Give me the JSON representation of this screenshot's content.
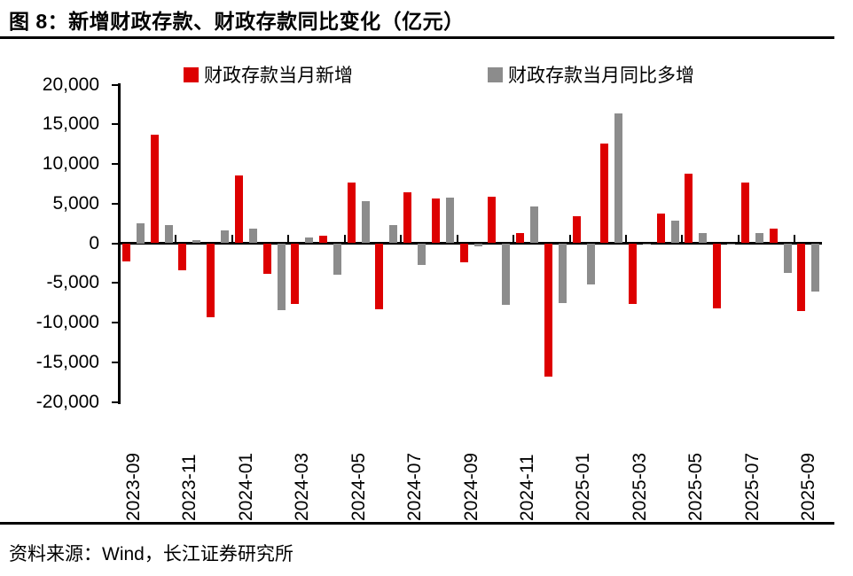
{
  "page": {
    "title": "图 8：新增财政存款、财政存款同比变化（亿元）",
    "source_note": "资料来源：Wind，长江证券研究所"
  },
  "legend": {
    "items": [
      {
        "label": "财政存款当月新增",
        "color": "#dd0000"
      },
      {
        "label": "财政存款当月同比多增",
        "color": "#8c8c8c"
      }
    ]
  },
  "y_axis": {
    "tick_labels": [
      "20,000",
      "15,000",
      "10,000",
      "5,000",
      "0",
      "-5,000",
      "-10,000",
      "-15,000",
      "-20,000"
    ]
  },
  "chart_data": {
    "type": "bar",
    "title": "图 8：新增财政存款、财政存款同比变化（亿元）",
    "unit": "亿元",
    "ylim": [
      -20000,
      20000
    ],
    "ytick_step": 5000,
    "grid": false,
    "legend_position": "top",
    "categories": [
      "2023-09",
      "2023-10",
      "2023-11",
      "2023-12",
      "2024-01",
      "2024-02",
      "2024-03",
      "2024-04",
      "2024-05",
      "2024-06",
      "2024-07",
      "2024-08",
      "2024-09",
      "2024-10",
      "2024-11",
      "2024-12",
      "2025-01",
      "2025-02",
      "2025-03",
      "2025-04",
      "2025-05",
      "2025-06",
      "2025-07",
      "2025-08",
      "2025-09"
    ],
    "xtick_labels": [
      "2023-09",
      "2023-11",
      "2024-01",
      "2024-03",
      "2024-05",
      "2024-07",
      "2024-09",
      "2024-11",
      "2025-01",
      "2025-03",
      "2025-05",
      "2025-07",
      "2025-09"
    ],
    "series": [
      {
        "name": "财政存款当月新增",
        "color": "#dd0000",
        "values": [
          -2300,
          13700,
          -3400,
          -9300,
          8600,
          -3800,
          -7700,
          900,
          7600,
          -8300,
          6400,
          5600,
          -2400,
          5900,
          1300,
          -16800,
          3400,
          12600,
          -7700,
          3700,
          8800,
          -8200,
          7600,
          1800,
          -8500
        ]
      },
      {
        "name": "财政存款当月同比多增",
        "color": "#8c8c8c",
        "values": [
          2500,
          2300,
          400,
          1600,
          1800,
          -8400,
          700,
          -4000,
          5300,
          2300,
          -2700,
          5700,
          -400,
          -7800,
          4600,
          -7500,
          -5200,
          16400,
          -50,
          2800,
          1300,
          -100,
          1300,
          -3700,
          -6100
        ]
      }
    ]
  }
}
